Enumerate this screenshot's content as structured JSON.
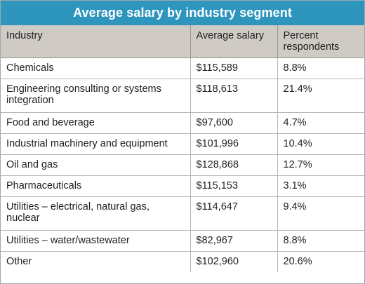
{
  "chart_data": {
    "type": "table",
    "title": "Average salary by industry segment",
    "columns": [
      "Industry",
      "Average salary",
      "Percent respondents"
    ],
    "rows": [
      {
        "industry": "Chemicals",
        "salary": "$115,589",
        "percent": "8.8%"
      },
      {
        "industry": "Engineering consulting or systems integration",
        "salary": "$118,613",
        "percent": "21.4%"
      },
      {
        "industry": "Food and beverage",
        "salary": "$97,600",
        "percent": "4.7%"
      },
      {
        "industry": "Industrial machinery and equipment",
        "salary": "$101,996",
        "percent": "10.4%"
      },
      {
        "industry": "Oil and gas",
        "salary": "$128,868",
        "percent": "12.7%"
      },
      {
        "industry": "Pharmaceuticals",
        "salary": "$115,153",
        "percent": "3.1%"
      },
      {
        "industry": "Utilities – electrical, natural gas, nuclear",
        "salary": "$114,647",
        "percent": "9.4%"
      },
      {
        "industry": "Utilities – water/wastewater",
        "salary": "$82,967",
        "percent": "8.8%"
      },
      {
        "industry": "Other",
        "salary": "$102,960",
        "percent": "20.6%"
      }
    ],
    "colors": {
      "title_bg": "#2e95bd",
      "header_bg": "#cfcac4"
    }
  }
}
